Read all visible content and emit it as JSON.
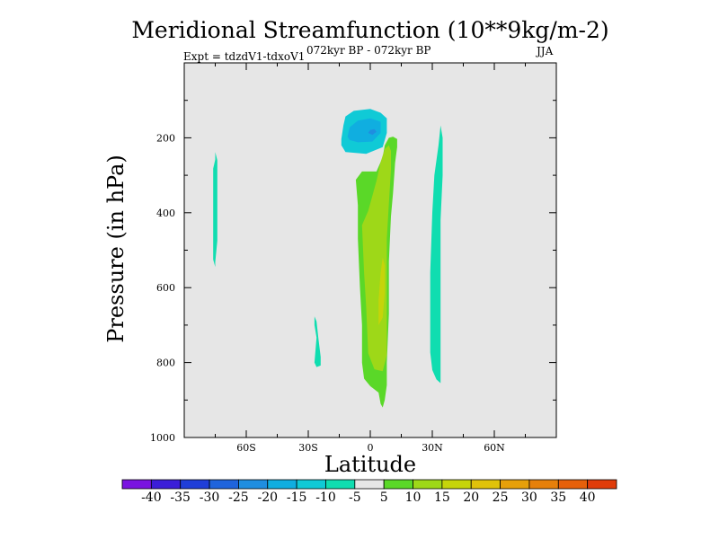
{
  "chart_data": {
    "type": "contour",
    "title": "Meridional Streamfunction (10**9kg/m-2)",
    "left_subtitle": "Expt = tdzdV1-tdxoV1",
    "center_subtitle": "072kyr BP - 072kyr BP",
    "right_subtitle": "JJA",
    "xlabel": "Latitude",
    "ylabel": "Pressure (in hPa)",
    "xlim": [
      -90,
      90
    ],
    "ylim": [
      0,
      1000
    ],
    "x_ticks": [
      {
        "value": -60,
        "label": "60S"
      },
      {
        "value": -30,
        "label": "30S"
      },
      {
        "value": 0,
        "label": "0"
      },
      {
        "value": 30,
        "label": "30N"
      },
      {
        "value": 60,
        "label": "60N"
      }
    ],
    "y_ticks": [
      {
        "value": 200,
        "label": "200"
      },
      {
        "value": 400,
        "label": "400"
      },
      {
        "value": 600,
        "label": "600"
      },
      {
        "value": 800,
        "label": "800"
      },
      {
        "value": 1000,
        "label": "1000"
      }
    ],
    "colorbar": {
      "labels": [
        "-40",
        "-35",
        "-30",
        "-25",
        "-20",
        "-15",
        "-10",
        "-5",
        "5",
        "10",
        "15",
        "20",
        "25",
        "30",
        "35",
        "40"
      ],
      "colors": [
        "#7a14e0",
        "#3b1ed8",
        "#1f3ed8",
        "#1f64dc",
        "#1f8ee0",
        "#10aee0",
        "#10cad6",
        "#10ddb0",
        "#e6e6e6",
        "#5ad828",
        "#9ed818",
        "#c6d40a",
        "#e0c20a",
        "#e6a00a",
        "#e6800a",
        "#e6600a",
        "#e03c0a"
      ]
    },
    "regions": [
      {
        "name": "upper-negative-cell",
        "level": "-15 to -10",
        "color": "#10cad6",
        "points": [
          [
            -14,
            203
          ],
          [
            -13,
            167
          ],
          [
            -12,
            143
          ],
          [
            -8,
            128
          ],
          [
            0,
            123
          ],
          [
            5,
            133
          ],
          [
            8,
            148
          ],
          [
            8,
            187
          ],
          [
            6,
            225
          ],
          [
            -2,
            243
          ],
          [
            -12,
            238
          ],
          [
            -14,
            220
          ]
        ]
      },
      {
        "name": "upper-negative-core",
        "level": "-20 to -15",
        "color": "#10aee0",
        "points": [
          [
            -11,
            197
          ],
          [
            -10,
            172
          ],
          [
            -6,
            154
          ],
          [
            0,
            148
          ],
          [
            5,
            157
          ],
          [
            5,
            187
          ],
          [
            1,
            210
          ],
          [
            -6,
            212
          ],
          [
            -10,
            206
          ]
        ]
      },
      {
        "name": "upper-negative-peak",
        "level": "-25 to -20",
        "color": "#1f8ee0",
        "points": [
          [
            -1,
            187
          ],
          [
            0,
            179
          ],
          [
            2,
            177
          ],
          [
            3,
            184
          ],
          [
            1,
            192
          ]
        ]
      },
      {
        "name": "positive-column-outer",
        "level": "5 to 10",
        "color": "#5ad828",
        "points": [
          [
            -7,
            312
          ],
          [
            -4,
            290
          ],
          [
            3,
            290
          ],
          [
            6,
            252
          ],
          [
            7,
            220
          ],
          [
            9,
            200
          ],
          [
            11,
            197
          ],
          [
            13,
            203
          ],
          [
            13,
            225
          ],
          [
            12,
            267
          ],
          [
            11,
            348
          ],
          [
            10,
            410
          ],
          [
            9,
            530
          ],
          [
            9,
            670
          ],
          [
            8,
            800
          ],
          [
            8,
            860
          ],
          [
            7,
            900
          ],
          [
            6,
            920
          ],
          [
            5,
            910
          ],
          [
            4,
            880
          ],
          [
            0,
            863
          ],
          [
            -3,
            843
          ],
          [
            -4,
            800
          ],
          [
            -4,
            700
          ],
          [
            -5,
            600
          ],
          [
            -6,
            470
          ],
          [
            -6,
            380
          ]
        ]
      },
      {
        "name": "positive-column-inner",
        "level": "10 to 15",
        "color": "#9ed818",
        "points": [
          [
            -4,
            433
          ],
          [
            -1,
            395
          ],
          [
            3,
            315
          ],
          [
            5,
            265
          ],
          [
            7,
            230
          ],
          [
            9,
            220
          ],
          [
            10,
            235
          ],
          [
            10,
            285
          ],
          [
            9,
            375
          ],
          [
            8,
            470
          ],
          [
            8,
            590
          ],
          [
            8,
            700
          ],
          [
            8,
            780
          ],
          [
            6,
            823
          ],
          [
            2,
            818
          ],
          [
            -1,
            775
          ],
          [
            -2,
            650
          ],
          [
            -3,
            560
          ]
        ]
      },
      {
        "name": "positive-column-core",
        "level": "15 to 20",
        "color": "#c6d40a",
        "points": [
          [
            4,
            633
          ],
          [
            5,
            560
          ],
          [
            6,
            520
          ],
          [
            7,
            540
          ],
          [
            7,
            615
          ],
          [
            6,
            680
          ],
          [
            4,
            700
          ]
        ]
      },
      {
        "name": "left-thin-band",
        "level": "-10 to -5",
        "color": "#10ddb0",
        "points": [
          [
            -76,
            282
          ],
          [
            -75,
            258
          ],
          [
            -75,
            238
          ],
          [
            -74,
            260
          ],
          [
            -74,
            290
          ],
          [
            -74,
            382
          ],
          [
            -74,
            475
          ],
          [
            -75,
            532
          ],
          [
            -75,
            545
          ],
          [
            -76,
            525
          ],
          [
            -76,
            430
          ],
          [
            -76,
            340
          ]
        ]
      },
      {
        "name": "mid-left-patch",
        "level": "-10 to -5",
        "color": "#10ddb0",
        "points": [
          [
            -26,
            733
          ],
          [
            -27,
            700
          ],
          [
            -27,
            677
          ],
          [
            -26,
            690
          ],
          [
            -25,
            740
          ],
          [
            -24,
            785
          ],
          [
            -24,
            808
          ],
          [
            -26,
            812
          ],
          [
            -27,
            800
          ]
        ]
      },
      {
        "name": "right-band",
        "level": "-10 to -5",
        "color": "#10ddb0",
        "points": [
          [
            29,
            700
          ],
          [
            29,
            560
          ],
          [
            30,
            400
          ],
          [
            31,
            300
          ],
          [
            33,
            220
          ],
          [
            34,
            167
          ],
          [
            35,
            200
          ],
          [
            35,
            300
          ],
          [
            34,
            420
          ],
          [
            34,
            560
          ],
          [
            34,
            700
          ],
          [
            34,
            823
          ],
          [
            34,
            855
          ],
          [
            32,
            845
          ],
          [
            30,
            820
          ],
          [
            29,
            773
          ]
        ]
      }
    ]
  }
}
